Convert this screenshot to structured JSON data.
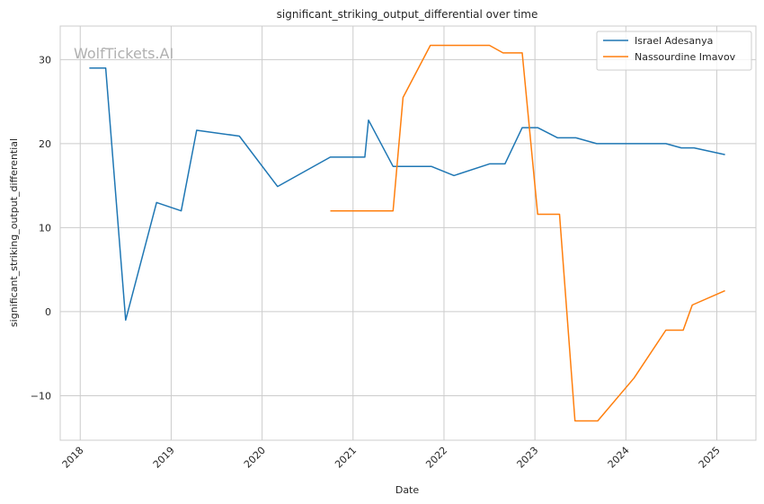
{
  "chart_data": {
    "type": "line",
    "title": "significant_striking_output_differential over time",
    "xlabel": "Date",
    "ylabel": "significant_striking_output_differential",
    "watermark": "WolfTickets.AI",
    "x_ticks": [
      "2018",
      "2019",
      "2020",
      "2021",
      "2022",
      "2023",
      "2024",
      "2025"
    ],
    "y_ticks": [
      "−10",
      "0",
      "10",
      "20",
      "30"
    ],
    "xlim": [
      2017.78,
      2025.43
    ],
    "ylim": [
      -15.3,
      34.0
    ],
    "grid": true,
    "legend_position": "top-right",
    "series": [
      {
        "name": "Israel Adesanya",
        "color": "#1f77b4",
        "points": [
          [
            2018.1,
            29.0
          ],
          [
            2018.28,
            29.0
          ],
          [
            2018.5,
            -1.0
          ],
          [
            2018.84,
            13.0
          ],
          [
            2019.11,
            12.0
          ],
          [
            2019.28,
            21.6
          ],
          [
            2019.75,
            20.9
          ],
          [
            2020.17,
            14.9
          ],
          [
            2020.75,
            18.4
          ],
          [
            2021.13,
            18.4
          ],
          [
            2021.17,
            22.8
          ],
          [
            2021.44,
            17.3
          ],
          [
            2021.86,
            17.3
          ],
          [
            2022.11,
            16.2
          ],
          [
            2022.5,
            17.6
          ],
          [
            2022.67,
            17.6
          ],
          [
            2022.86,
            21.9
          ],
          [
            2023.03,
            21.9
          ],
          [
            2023.25,
            20.7
          ],
          [
            2023.45,
            20.7
          ],
          [
            2023.68,
            20.0
          ],
          [
            2024.0,
            20.0
          ],
          [
            2024.44,
            20.0
          ],
          [
            2024.61,
            19.5
          ],
          [
            2024.75,
            19.5
          ],
          [
            2025.09,
            18.7
          ]
        ]
      },
      {
        "name": "Nassourdine Imavov",
        "color": "#ff7f0e",
        "points": [
          [
            2020.75,
            12.0
          ],
          [
            2021.44,
            12.0
          ],
          [
            2021.55,
            25.5
          ],
          [
            2021.85,
            31.7
          ],
          [
            2022.5,
            31.7
          ],
          [
            2022.65,
            30.8
          ],
          [
            2022.86,
            30.8
          ],
          [
            2023.03,
            11.6
          ],
          [
            2023.27,
            11.6
          ],
          [
            2023.44,
            -13.0
          ],
          [
            2023.69,
            -13.0
          ],
          [
            2024.09,
            -7.9
          ],
          [
            2024.44,
            -2.2
          ],
          [
            2024.63,
            -2.2
          ],
          [
            2024.73,
            0.8
          ],
          [
            2025.09,
            2.5
          ]
        ]
      }
    ]
  }
}
